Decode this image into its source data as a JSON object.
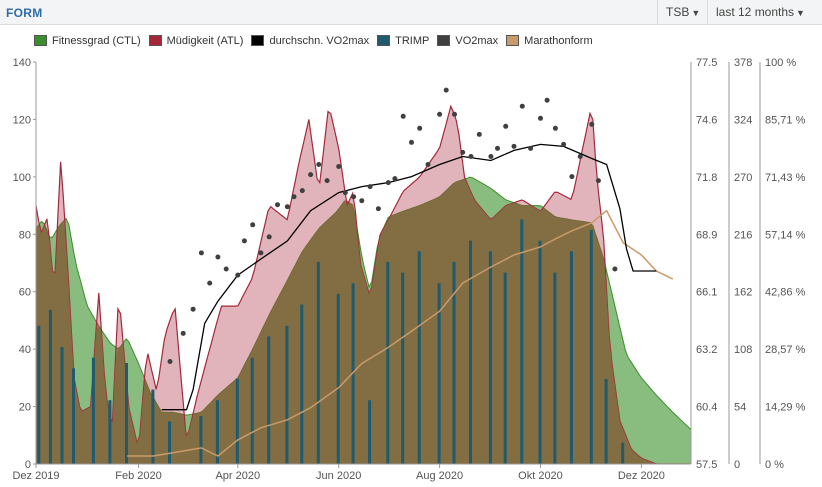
{
  "header": {
    "title": "FORM",
    "metric_select": "TSB",
    "range_select": "last 12 months"
  },
  "colors": {
    "ctl": "#3a8f2a",
    "atl": "#a5283a",
    "avg_vo2": "#000000",
    "trimp": "#1f5a6e",
    "vo2": "#404040",
    "marathon": "#c99a6a",
    "overlap": "#7f6a3c"
  },
  "chart_data": {
    "type": "area",
    "title": "",
    "x_ticks": [
      "Dez 2019",
      "Feb 2020",
      "Apr 2020",
      "Jun 2020",
      "Aug 2020",
      "Okt 2020",
      "Dez 2020"
    ],
    "x_range": [
      "2019-12-01",
      "2020-12-31"
    ],
    "axes": {
      "left": {
        "min": 0,
        "max": 140,
        "ticks": [
          "0",
          "20",
          "40",
          "60",
          "80",
          "100",
          "120",
          "140"
        ]
      },
      "vo2": {
        "min": 57.5,
        "max": 77.5,
        "ticks": [
          "57.5",
          "60.4",
          "63.2",
          "66.1",
          "68.9",
          "71.8",
          "74.6",
          "77.5"
        ]
      },
      "trimp": {
        "min": 0,
        "max": 378,
        "ticks": [
          "0",
          "54",
          "108",
          "162",
          "216",
          "270",
          "324",
          "378"
        ]
      },
      "percent": {
        "min": 0,
        "max": 100,
        "ticks": [
          "0 %",
          "14,29 %",
          "28,57 %",
          "42,86 %",
          "57,14 %",
          "71,43 %",
          "85,71 %",
          "100 %"
        ]
      }
    },
    "grid": false,
    "legend_position": "top",
    "series": [
      {
        "name": "Fitnessgrad (CTL)",
        "axis": "left",
        "x": [
          "2019-12-01",
          "2019-12-05",
          "2019-12-10",
          "2019-12-15",
          "2019-12-20",
          "2019-12-25",
          "2020-01-01",
          "2020-01-08",
          "2020-01-15",
          "2020-01-20",
          "2020-01-25",
          "2020-02-01",
          "2020-02-08",
          "2020-02-15",
          "2020-02-22",
          "2020-03-01",
          "2020-03-10",
          "2020-03-20",
          "2020-04-01",
          "2020-04-10",
          "2020-04-20",
          "2020-05-01",
          "2020-05-10",
          "2020-05-20",
          "2020-05-31",
          "2020-06-05",
          "2020-06-10",
          "2020-06-15",
          "2020-06-20",
          "2020-06-25",
          "2020-07-01",
          "2020-07-10",
          "2020-07-20",
          "2020-08-01",
          "2020-08-10",
          "2020-08-20",
          "2020-09-01",
          "2020-09-10",
          "2020-09-20",
          "2020-10-01",
          "2020-10-10",
          "2020-10-20",
          "2020-11-01",
          "2020-11-08",
          "2020-11-15",
          "2020-11-22",
          "2020-12-01",
          "2020-12-10",
          "2020-12-20",
          "2020-12-31"
        ],
        "values": [
          82,
          85,
          78,
          83,
          86,
          70,
          55,
          48,
          42,
          40,
          44,
          35,
          25,
          18,
          18,
          17,
          18,
          24,
          30,
          40,
          52,
          64,
          74,
          82,
          88,
          92,
          90,
          72,
          60,
          78,
          86,
          88,
          90,
          93,
          98,
          100,
          96,
          92,
          90,
          90,
          86,
          85,
          84,
          72,
          55,
          38,
          30,
          24,
          18,
          12
        ]
      },
      {
        "name": "Müdigkeit (ATL)",
        "axis": "left",
        "x": [
          "2019-12-01",
          "2019-12-04",
          "2019-12-08",
          "2019-12-12",
          "2019-12-16",
          "2019-12-20",
          "2019-12-24",
          "2019-12-28",
          "2020-01-03",
          "2020-01-08",
          "2020-01-12",
          "2020-01-16",
          "2020-01-20",
          "2020-01-26",
          "2020-02-01",
          "2020-02-06",
          "2020-02-12",
          "2020-02-17",
          "2020-02-23",
          "2020-03-01",
          "2020-03-08",
          "2020-03-15",
          "2020-03-22",
          "2020-04-01",
          "2020-04-10",
          "2020-04-20",
          "2020-05-01",
          "2020-05-08",
          "2020-05-14",
          "2020-05-20",
          "2020-05-26",
          "2020-06-01",
          "2020-06-06",
          "2020-06-10",
          "2020-06-14",
          "2020-06-20",
          "2020-06-26",
          "2020-07-01",
          "2020-07-10",
          "2020-07-20",
          "2020-08-01",
          "2020-08-08",
          "2020-08-12",
          "2020-08-16",
          "2020-08-22",
          "2020-09-01",
          "2020-09-10",
          "2020-09-20",
          "2020-10-01",
          "2020-10-10",
          "2020-10-20",
          "2020-11-01",
          "2020-11-04",
          "2020-11-08",
          "2020-11-12",
          "2020-11-18",
          "2020-11-25",
          "2020-12-01",
          "2020-12-10",
          "2020-12-31"
        ],
        "values": [
          90,
          80,
          86,
          60,
          107,
          70,
          30,
          18,
          20,
          60,
          25,
          12,
          60,
          20,
          5,
          40,
          25,
          45,
          55,
          8,
          25,
          40,
          55,
          55,
          65,
          90,
          85,
          105,
          120,
          95,
          125,
          110,
          90,
          95,
          70,
          58,
          80,
          85,
          95,
          100,
          110,
          125,
          118,
          100,
          92,
          85,
          90,
          92,
          88,
          95,
          92,
          125,
          100,
          80,
          40,
          15,
          5,
          2,
          0,
          0
        ]
      },
      {
        "name": "durchschn. VO2max",
        "axis": "vo2",
        "x": [
          "2020-02-15",
          "2020-03-01",
          "2020-03-05",
          "2020-03-12",
          "2020-03-20",
          "2020-04-01",
          "2020-04-15",
          "2020-05-01",
          "2020-05-15",
          "2020-06-01",
          "2020-06-15",
          "2020-07-01",
          "2020-07-15",
          "2020-08-01",
          "2020-08-15",
          "2020-09-01",
          "2020-09-15",
          "2020-10-01",
          "2020-10-15",
          "2020-11-01",
          "2020-11-10",
          "2020-11-18",
          "2020-11-22",
          "2020-11-26",
          "2020-12-10"
        ],
        "values": [
          60.2,
          60.2,
          61.2,
          64.5,
          65.6,
          66.9,
          67.7,
          68.6,
          70.1,
          71.0,
          71.3,
          71.5,
          71.8,
          72.4,
          72.8,
          72.6,
          73.1,
          73.4,
          73.3,
          72.7,
          72.4,
          70.2,
          68.2,
          67.1,
          67.1
        ]
      },
      {
        "name": "TRIMP",
        "axis": "trimp",
        "type": "bar",
        "x": [
          "2019-12-03",
          "2019-12-10",
          "2019-12-17",
          "2019-12-24",
          "2020-01-05",
          "2020-01-15",
          "2020-01-25",
          "2020-02-10",
          "2020-02-20",
          "2020-03-10",
          "2020-03-20",
          "2020-04-01",
          "2020-04-10",
          "2020-04-20",
          "2020-05-01",
          "2020-05-10",
          "2020-05-20",
          "2020-06-01",
          "2020-06-10",
          "2020-06-20",
          "2020-07-01",
          "2020-07-10",
          "2020-07-20",
          "2020-08-01",
          "2020-08-10",
          "2020-08-20",
          "2020-09-01",
          "2020-09-10",
          "2020-09-20",
          "2020-10-01",
          "2020-10-10",
          "2020-10-20",
          "2020-11-01",
          "2020-11-10",
          "2020-11-20"
        ],
        "values": [
          130,
          145,
          110,
          90,
          100,
          60,
          95,
          70,
          40,
          45,
          60,
          80,
          100,
          120,
          130,
          150,
          190,
          160,
          170,
          60,
          190,
          180,
          200,
          170,
          190,
          210,
          200,
          180,
          230,
          210,
          180,
          200,
          220,
          80,
          20
        ]
      },
      {
        "name": "VO2max",
        "axis": "vo2",
        "type": "scatter",
        "x": [
          "2020-02-20",
          "2020-02-28",
          "2020-03-05",
          "2020-03-10",
          "2020-03-15",
          "2020-03-20",
          "2020-03-25",
          "2020-04-01",
          "2020-04-05",
          "2020-04-10",
          "2020-04-15",
          "2020-04-20",
          "2020-04-25",
          "2020-05-01",
          "2020-05-05",
          "2020-05-10",
          "2020-05-15",
          "2020-05-20",
          "2020-05-25",
          "2020-06-01",
          "2020-06-05",
          "2020-06-10",
          "2020-06-15",
          "2020-06-20",
          "2020-06-25",
          "2020-07-01",
          "2020-07-05",
          "2020-07-10",
          "2020-07-15",
          "2020-07-20",
          "2020-07-25",
          "2020-08-01",
          "2020-08-05",
          "2020-08-10",
          "2020-08-15",
          "2020-08-20",
          "2020-08-25",
          "2020-09-01",
          "2020-09-05",
          "2020-09-10",
          "2020-09-15",
          "2020-09-20",
          "2020-09-25",
          "2020-10-01",
          "2020-10-05",
          "2020-10-10",
          "2020-10-15",
          "2020-10-20",
          "2020-10-25",
          "2020-11-01",
          "2020-11-05",
          "2020-11-15"
        ],
        "values": [
          62.6,
          64.0,
          65.2,
          68.0,
          66.5,
          67.8,
          67.2,
          66.9,
          68.6,
          69.4,
          68.0,
          68.8,
          70.4,
          70.3,
          70.8,
          71.1,
          71.9,
          72.4,
          71.6,
          72.3,
          71.0,
          70.8,
          70.6,
          71.3,
          70.2,
          71.5,
          71.7,
          74.8,
          73.5,
          74.2,
          72.4,
          74.9,
          76.1,
          74.9,
          73.0,
          72.8,
          73.9,
          72.8,
          73.2,
          74.3,
          73.3,
          75.3,
          73.2,
          74.7,
          75.6,
          74.2,
          73.4,
          71.8,
          72.8,
          74.4,
          71.6,
          67.2
        ]
      },
      {
        "name": "Marathonform",
        "axis": "percent",
        "x": [
          "2020-01-25",
          "2020-02-10",
          "2020-02-25",
          "2020-03-10",
          "2020-03-20",
          "2020-04-01",
          "2020-04-15",
          "2020-05-01",
          "2020-05-15",
          "2020-06-01",
          "2020-06-15",
          "2020-07-01",
          "2020-07-15",
          "2020-08-01",
          "2020-08-15",
          "2020-09-01",
          "2020-09-15",
          "2020-10-01",
          "2020-10-10",
          "2020-10-20",
          "2020-11-01",
          "2020-11-10",
          "2020-11-20",
          "2020-12-01",
          "2020-12-10",
          "2020-12-20"
        ],
        "values": [
          2,
          2,
          3,
          4,
          2,
          6,
          9,
          11,
          14,
          19,
          25,
          29,
          33,
          38,
          45,
          49,
          52,
          54,
          56,
          58,
          60,
          63,
          55,
          52,
          48,
          46
        ]
      }
    ]
  }
}
